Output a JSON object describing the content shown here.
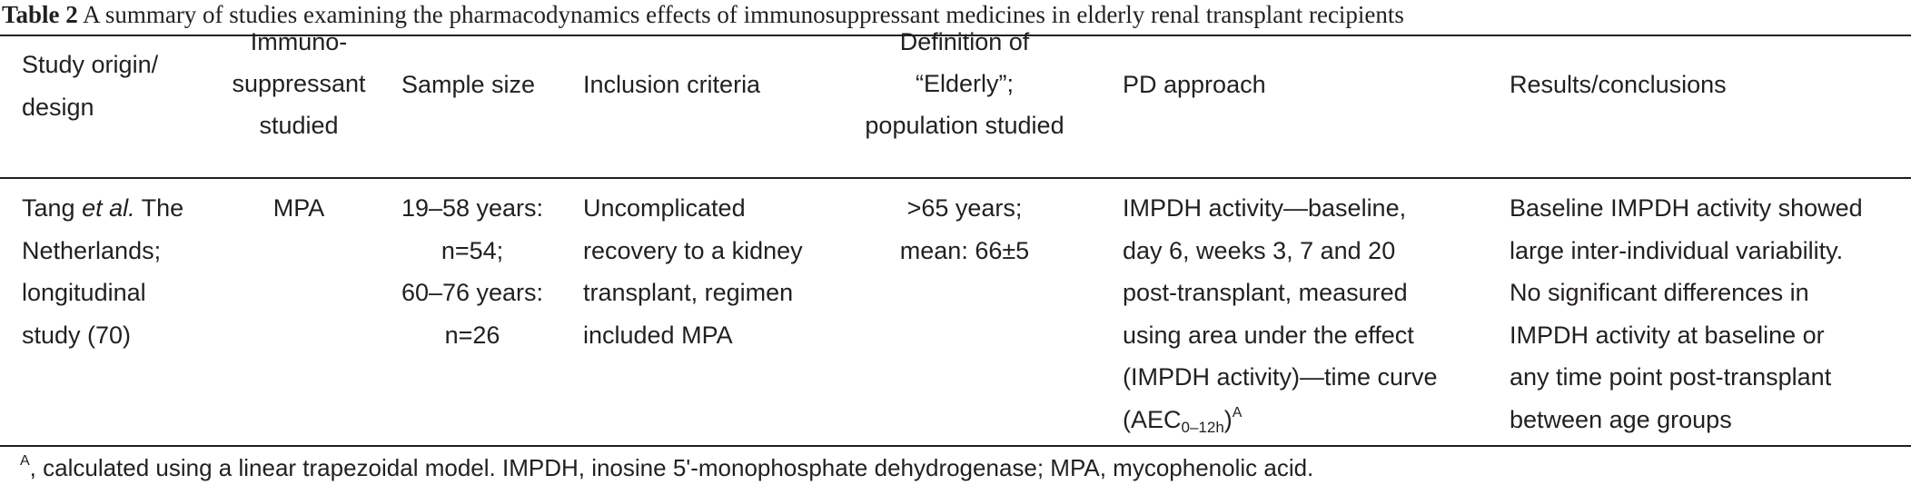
{
  "caption": {
    "label": "Table 2",
    "text": "A summary of studies examining the pharmacodynamics effects of immunosuppressant medicines in elderly renal transplant recipients"
  },
  "table": {
    "headers": [
      [
        "Study origin/",
        "design"
      ],
      [
        "Immuno-",
        "suppressant",
        "studied"
      ],
      [
        "Sample size"
      ],
      [
        "Inclusion criteria"
      ],
      [
        "Definition of",
        "“Elderly”;",
        "population studied"
      ],
      [
        "PD approach"
      ],
      [
        "Results/conclusions"
      ]
    ],
    "row": {
      "study": {
        "author": "Tang",
        "etal": "et al.",
        "line1_rest": " The",
        "lines": [
          "Netherlands;",
          "longitudinal",
          "study (70)"
        ]
      },
      "immunosuppressant": [
        "MPA"
      ],
      "sample_size": [
        "19–58 years:",
        "n=54;",
        "60–76 years:",
        "n=26"
      ],
      "inclusion": [
        "Uncomplicated",
        "recovery to a kidney",
        "transplant, regimen",
        "included MPA"
      ],
      "elderly": [
        ">65 years;",
        "mean: 66±5"
      ],
      "pd_approach": {
        "lines": [
          "IMPDH activity—baseline,",
          "day 6, weeks 3, 7 and 20",
          "post-transplant, measured",
          "using area under the effect",
          "(IMPDH activity)—time curve"
        ],
        "last_base": "(AEC",
        "last_sub": "0–12h",
        "last_close": ")",
        "last_sup": "A"
      },
      "results": [
        "Baseline IMPDH activity showed",
        "large inter-individual variability.",
        "No significant differences in",
        "IMPDH activity at baseline or",
        "any time point post-transplant",
        "between age groups"
      ]
    }
  },
  "footnote": {
    "sup": "A",
    "text": ", calculated using a linear trapezoidal model. IMPDH, inosine 5'-monophosphate dehydrogenase; MPA, mycophenolic acid."
  }
}
